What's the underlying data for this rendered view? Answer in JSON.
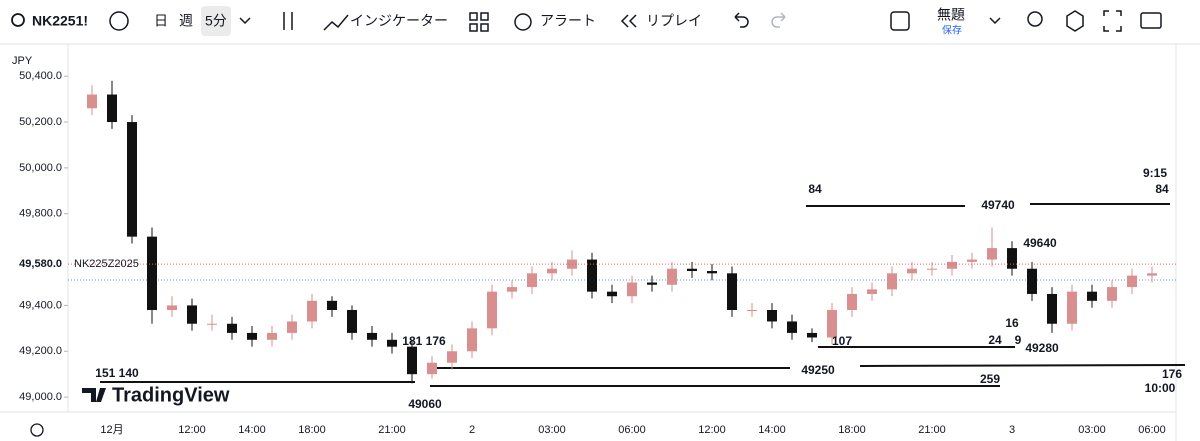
{
  "toolbar": {
    "symbol": "NK2251!",
    "day": "日",
    "week": "週",
    "interval": "5分",
    "indicators": "インジケーター",
    "alert": "アラート",
    "replay": "リプレイ",
    "layout_name": "無題",
    "save": "保存"
  },
  "chart_data": {
    "type": "candlestick",
    "currency": "JPY",
    "watermark": "TradingView",
    "up_color": "#d98f8f",
    "down_color": "#111111",
    "categories": [
      null,
      "12月",
      null,
      null,
      null,
      "12:00",
      null,
      null,
      "14:00",
      null,
      null,
      "18:00",
      null,
      null,
      null,
      "21:00",
      null,
      null,
      null,
      "2",
      null,
      null,
      null,
      "03:00",
      null,
      null,
      null,
      "06:00",
      null,
      null,
      null,
      "12:00",
      null,
      null,
      "14:00",
      null,
      null,
      null,
      "18:00",
      null,
      null,
      null,
      "21:00",
      null,
      null,
      null,
      "3",
      null,
      null,
      null,
      "03:00",
      null,
      null,
      "06:00"
    ],
    "open": [
      50260,
      50320,
      50200,
      49700,
      49380,
      49400,
      49320,
      49320,
      49280,
      49250,
      49280,
      49330,
      49420,
      49380,
      49280,
      49250,
      49220,
      49100,
      49150,
      49200,
      49300,
      49460,
      49480,
      49540,
      49560,
      49600,
      49460,
      49440,
      49500,
      49490,
      49560,
      49550,
      49540,
      49380,
      49380,
      49330,
      49280,
      49260,
      49380,
      49450,
      49470,
      49540,
      49560,
      49560,
      49590,
      49600,
      49650,
      49560,
      49450,
      49320,
      49460,
      49420,
      49480,
      49530
    ],
    "high": [
      50360,
      50380,
      50230,
      49740,
      49440,
      49430,
      49360,
      49350,
      49310,
      49310,
      49360,
      49450,
      49440,
      49400,
      49310,
      49280,
      49250,
      49180,
      49230,
      49330,
      49490,
      49510,
      49570,
      49590,
      49640,
      49630,
      49490,
      49530,
      49530,
      49590,
      49590,
      49580,
      49570,
      49410,
      49410,
      49360,
      49300,
      49410,
      49480,
      49500,
      49570,
      49590,
      49590,
      49620,
      49630,
      49740,
      49680,
      49590,
      49480,
      49490,
      49490,
      49510,
      49560,
      49570
    ],
    "low": [
      50230,
      50170,
      49670,
      49320,
      49350,
      49290,
      49290,
      49250,
      49220,
      49220,
      49250,
      49300,
      49350,
      49250,
      49220,
      49190,
      49060,
      49080,
      49120,
      49170,
      49270,
      49430,
      49450,
      49510,
      49530,
      49430,
      49410,
      49410,
      49460,
      49460,
      49520,
      49510,
      49350,
      49350,
      49300,
      49250,
      49240,
      49230,
      49350,
      49420,
      49440,
      49510,
      49530,
      49530,
      49560,
      49570,
      49530,
      49420,
      49280,
      49290,
      49390,
      49390,
      49450,
      49500
    ],
    "close": [
      50320,
      50200,
      49700,
      49380,
      49400,
      49320,
      49320,
      49280,
      49250,
      49280,
      49330,
      49420,
      49380,
      49280,
      49250,
      49220,
      49100,
      49150,
      49200,
      49300,
      49460,
      49480,
      49540,
      49560,
      49600,
      49460,
      49440,
      49500,
      49490,
      49560,
      49550,
      49540,
      49380,
      49380,
      49330,
      49280,
      49260,
      49380,
      49450,
      49470,
      49540,
      49560,
      49560,
      49590,
      49600,
      49650,
      49560,
      49450,
      49320,
      49460,
      49420,
      49480,
      49530,
      49540
    ],
    "ylim": [
      48935,
      50523
    ],
    "yticks": [
      {
        "value": 49000,
        "label": "49,000.0"
      },
      {
        "value": 49200,
        "label": "49,200.0"
      },
      {
        "value": 49400,
        "label": "49,400.0"
      },
      {
        "value": 49800,
        "label": "49,800.0"
      },
      {
        "value": 50000,
        "label": "50,000.0"
      },
      {
        "value": 50200,
        "label": "50,200.0"
      },
      {
        "value": 50400,
        "label": "50,400.0"
      }
    ],
    "price_line": {
      "value": 49580,
      "label": "49,580.0",
      "name": "NK225Z2025",
      "color": "#e06666"
    },
    "grid": false,
    "annotations": [
      "84",
      "9:15",
      "84",
      "49740",
      "49640",
      "16",
      "24",
      "9",
      "107",
      "49280",
      "181 176",
      "151 140",
      "49250",
      "176",
      "259",
      "10:00",
      "49060"
    ]
  }
}
